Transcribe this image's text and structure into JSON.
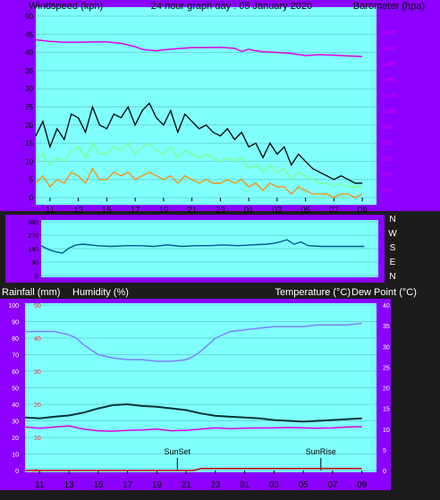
{
  "header": {
    "left_label": "Windspeed (kph)",
    "center_label": "24 hour graph day : 05 January 2020",
    "right_label": "Barometer (hpa)"
  },
  "lower_header": {
    "rainfall_label": "Rainfall (mm)",
    "humidity_label": "Humidity (%)",
    "temperature_label": "Temperature (°C)",
    "dewpoint_label": "Dew Point (°C)"
  },
  "colors": {
    "frame": "#8b00ff",
    "plot_bg": "#80ffff",
    "gust": "#000000",
    "wind_avg": "#80ff80",
    "wind_low": "#ff8c00",
    "barometer": "#e100e1",
    "humidity": "#8080ff",
    "temperature": "#003333",
    "dewpoint": "#e100e1",
    "rainfall": "#cc0000",
    "direction": "#005a8c"
  },
  "chart_data": [
    {
      "type": "line",
      "name": "wind-and-barometer",
      "x_tick_labels": [
        "11",
        "13",
        "15",
        "17",
        "19",
        "21",
        "23",
        "01",
        "03",
        "05",
        "07",
        "09"
      ],
      "xlim": [
        10,
        34
      ],
      "left_axis": {
        "ylim": [
          0,
          50
        ],
        "ticks": [
          0,
          5,
          10,
          15,
          20,
          25,
          30,
          35,
          40,
          45,
          50
        ]
      },
      "right_axis": {
        "ylim": [
          972.5,
          1030
        ],
        "ticks": [
          975,
          980,
          985,
          990,
          995,
          1000,
          1005,
          1010,
          1015,
          1020,
          1025
        ]
      },
      "series": [
        {
          "name": "Barometer",
          "axis": "right",
          "x": [
            10,
            11,
            12,
            13,
            14,
            15,
            16,
            17,
            17.5,
            18,
            18.5,
            19,
            20,
            21,
            22,
            23,
            24,
            24.5,
            25,
            25.5,
            26,
            27,
            28,
            29,
            30,
            31,
            32,
            33
          ],
          "values": [
            1022.5,
            1022,
            1021.7,
            1021.7,
            1021.8,
            1021.8,
            1021.4,
            1020.3,
            1019.5,
            1019.2,
            1019,
            1019.3,
            1019.7,
            1020,
            1020,
            1020.1,
            1019.8,
            1018.8,
            1019.5,
            1019,
            1018.7,
            1018.5,
            1018.2,
            1017.5,
            1017.8,
            1017.6,
            1017.4,
            1017.2
          ]
        },
        {
          "name": "Gust",
          "axis": "left",
          "x": [
            10,
            10.5,
            11,
            11.5,
            12,
            12.5,
            13,
            13.5,
            14,
            14.5,
            15,
            15.5,
            16,
            16.5,
            17,
            17.5,
            18,
            18.5,
            19,
            19.5,
            20,
            20.5,
            21,
            21.5,
            22,
            22.5,
            23,
            23.5,
            24,
            24.5,
            25,
            25.5,
            26,
            26.5,
            27,
            27.5,
            28,
            28.5,
            29,
            29.5,
            30,
            30.5,
            31,
            31.5,
            32,
            32.5,
            33
          ],
          "values": [
            17,
            21,
            14,
            19,
            16,
            23,
            22,
            18,
            25,
            20,
            19,
            23,
            22,
            25,
            20,
            24,
            26,
            22,
            20,
            24,
            18,
            23,
            21,
            19,
            20,
            18,
            17,
            19,
            16,
            18,
            14,
            15,
            11,
            15,
            12,
            14,
            9,
            12,
            10,
            8,
            7,
            6,
            5,
            6,
            5,
            4,
            4
          ]
        },
        {
          "name": "Average",
          "axis": "left",
          "x": [
            10,
            10.5,
            11,
            11.5,
            12,
            12.5,
            13,
            13.5,
            14,
            14.5,
            15,
            15.5,
            16,
            16.5,
            17,
            17.5,
            18,
            18.5,
            19,
            19.5,
            20,
            20.5,
            21,
            21.5,
            22,
            22.5,
            23,
            23.5,
            24,
            24.5,
            25,
            25.5,
            26,
            26.5,
            27,
            27.5,
            28,
            28.5,
            29,
            29.5,
            30,
            30.5,
            31,
            31.5,
            32,
            32.5,
            33
          ],
          "values": [
            10,
            12,
            9,
            11,
            10,
            13,
            14,
            11,
            15,
            12,
            12,
            14,
            13,
            15,
            12,
            14,
            15,
            13,
            12,
            14,
            11,
            13,
            12,
            11,
            12,
            11,
            10,
            11,
            10,
            11,
            8,
            9,
            7,
            9,
            7,
            8,
            5,
            7,
            6,
            5,
            4,
            4,
            3,
            4,
            3,
            3,
            3
          ]
        },
        {
          "name": "Low",
          "axis": "left",
          "x": [
            10,
            10.5,
            11,
            11.5,
            12,
            12.5,
            13,
            13.5,
            14,
            14.5,
            15,
            15.5,
            16,
            16.5,
            17,
            17.5,
            18,
            18.5,
            19,
            19.5,
            20,
            20.5,
            21,
            21.5,
            22,
            22.5,
            23,
            23.5,
            24,
            24.5,
            25,
            25.5,
            26,
            26.5,
            27,
            27.5,
            28,
            28.5,
            29,
            29.5,
            30,
            30.5,
            31,
            31.5,
            32,
            32.5,
            33
          ],
          "values": [
            4,
            6,
            3,
            5,
            4,
            7,
            6,
            4,
            8,
            5,
            5,
            7,
            6,
            7,
            5,
            6,
            7,
            6,
            5,
            6,
            4,
            6,
            5,
            4,
            5,
            4,
            4,
            5,
            4,
            5,
            3,
            4,
            2,
            4,
            3,
            3,
            1,
            3,
            2,
            1,
            1,
            1,
            0,
            1,
            1,
            0,
            1
          ]
        }
      ]
    },
    {
      "type": "line",
      "name": "wind-direction",
      "x_tick_labels": [],
      "xlim": [
        10,
        34
      ],
      "side_labels": [
        "N",
        "W",
        "S",
        "E",
        "N"
      ],
      "left_axis": {
        "ylim": [
          0,
          360
        ],
        "ticks": [
          0,
          90,
          180,
          270,
          360
        ]
      },
      "series": [
        {
          "name": "Direction",
          "x": [
            10,
            10.5,
            11,
            11.5,
            12,
            12.5,
            13,
            14,
            15,
            16,
            17,
            18,
            19,
            20,
            21,
            22,
            23,
            24,
            25,
            26,
            26.5,
            27,
            27.5,
            28,
            28.5,
            29,
            30,
            31,
            32,
            33
          ],
          "values": [
            200,
            175,
            160,
            150,
            185,
            205,
            210,
            200,
            195,
            200,
            200,
            195,
            205,
            195,
            200,
            200,
            205,
            200,
            205,
            210,
            215,
            225,
            240,
            210,
            225,
            200,
            195,
            195,
            195,
            195
          ]
        }
      ]
    },
    {
      "type": "line",
      "name": "humidity-temperature-rain",
      "x_tick_labels": [
        "11",
        "13",
        "15",
        "17",
        "19",
        "21",
        "23",
        "01",
        "03",
        "05",
        "07",
        "09"
      ],
      "xlim": [
        10,
        34
      ],
      "left_axis": {
        "ylim": [
          0,
          100
        ],
        "ticks": [
          0,
          10,
          20,
          30,
          40,
          50,
          60,
          70,
          80,
          90,
          100
        ]
      },
      "rain_axis": {
        "ylim": [
          0,
          50
        ],
        "ticks": [
          0,
          10,
          20,
          30,
          40,
          50
        ]
      },
      "right_axis": {
        "ylim": [
          0,
          40
        ],
        "ticks": [
          0,
          5,
          10,
          15,
          20,
          25,
          30,
          35,
          40
        ]
      },
      "annotations": [
        {
          "text": "SunSet",
          "x": 20.4
        },
        {
          "text": "SunRise",
          "x": 30.2
        }
      ],
      "series": [
        {
          "name": "Humidity",
          "axis": "left",
          "x": [
            10,
            11,
            12,
            13,
            13.5,
            14,
            14.5,
            15,
            16,
            17,
            18,
            19,
            20,
            21,
            21.5,
            22,
            22.5,
            23,
            24,
            25,
            26,
            27,
            28,
            29,
            30,
            31,
            32,
            33
          ],
          "values": [
            84,
            84,
            84,
            82,
            80,
            76,
            73,
            70,
            68,
            67,
            67,
            66,
            66,
            67,
            69,
            72,
            76,
            80,
            84,
            85,
            86,
            87,
            87,
            87,
            88,
            88,
            88,
            89
          ]
        },
        {
          "name": "Temperature",
          "axis": "right",
          "x": [
            10,
            11,
            12,
            13,
            14,
            15,
            16,
            17,
            18,
            19,
            20,
            21,
            22,
            23,
            24,
            25,
            26,
            27,
            28,
            29,
            30,
            31,
            32,
            33
          ],
          "values": [
            12.8,
            12.6,
            13.0,
            13.3,
            14.0,
            15.0,
            15.8,
            16.0,
            15.6,
            15.4,
            15.0,
            14.6,
            13.8,
            13.2,
            13.0,
            12.8,
            12.6,
            12.2,
            12.0,
            11.8,
            12.0,
            12.2,
            12.4,
            12.6
          ]
        },
        {
          "name": "Dew Point",
          "axis": "right",
          "x": [
            10,
            11,
            12,
            13,
            14,
            15,
            16,
            17,
            18,
            19,
            20,
            21,
            22,
            23,
            24,
            25,
            26,
            27,
            28,
            29,
            30,
            31,
            32,
            33
          ],
          "values": [
            10.5,
            10.2,
            10.5,
            10.8,
            10.0,
            9.6,
            9.5,
            9.7,
            9.8,
            10.0,
            9.6,
            9.7,
            10.0,
            10.3,
            10.1,
            10.2,
            10.3,
            10.3,
            10.4,
            10.3,
            10.2,
            10.3,
            10.5,
            10.6
          ]
        },
        {
          "name": "Rainfall",
          "axis": "rain",
          "x": [
            10,
            21.5,
            22,
            33
          ],
          "values": [
            0,
            0,
            0.6,
            0.6
          ]
        }
      ]
    }
  ]
}
